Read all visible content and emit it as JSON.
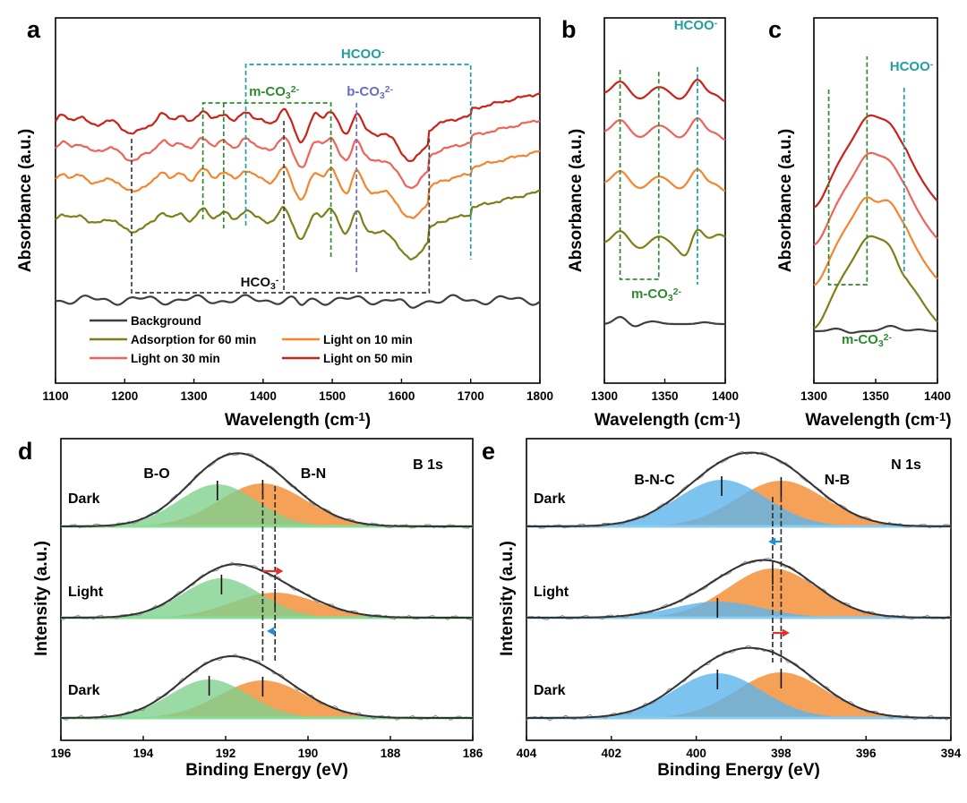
{
  "colors": {
    "background": "#3f3f3f",
    "adsorption_60": "#7f7f16",
    "light_10": "#f4842e",
    "light_30": "#ef6358",
    "light_50": "#cc2216",
    "hcoo": "#1f9f9e",
    "m_co3": "#2e8a2e",
    "b_co3": "#6b6bc9",
    "hco3": "#404040",
    "bo_fill": "#7fd18e",
    "bn_fill": "#f4913b",
    "bnc_fill": "#5cb4ec",
    "nb_fill": "#f4913b",
    "baseline_green": "#88dd99",
    "baseline_blue": "#88ccee",
    "arrow_red": "#e0322b",
    "arrow_blue": "#1e8ed6"
  },
  "chart_data": [
    {
      "panel": "a",
      "type": "line",
      "xlabel": "Wavelength (cm",
      "xlabel_sup": "-1",
      "xlabel_close": ")",
      "ylabel": "Absorbance (a.u.)",
      "xlim": [
        1100,
        1800
      ],
      "x_ticks": [
        "1100",
        "1200",
        "1300",
        "1400",
        "1500",
        "1600",
        "1700",
        "1800"
      ],
      "y_ticks": "none",
      "series": [
        {
          "name": "Background",
          "offset": 0
        },
        {
          "name": "Adsorption for 60 min",
          "offset": 1
        },
        {
          "name": "Light on 10 min",
          "offset": 2
        },
        {
          "name": "Light on 30 min",
          "offset": 3
        },
        {
          "name": "Light on 50 min",
          "offset": 4
        }
      ],
      "legend_rows": [
        [
          "Background"
        ],
        [
          "Adsorption for 60 min",
          "Light on 10 min"
        ],
        [
          "Light on 30 min",
          "Light on 50 min"
        ]
      ],
      "annotations": {
        "hcoo": {
          "label": "HCOO",
          "sup": "-",
          "positions": [
            1375,
            1700
          ]
        },
        "m_co3": {
          "label": "m-CO",
          "sub": "3",
          "sup": "2-",
          "positions": [
            1313,
            1343,
            1498
          ]
        },
        "b_co3": {
          "label": "b-CO",
          "sub": "3",
          "sup": "2-",
          "positions": [
            1535
          ]
        },
        "hco3": {
          "label": "HCO",
          "sub": "3",
          "sup": "-",
          "positions": [
            1210,
            1430,
            1640
          ]
        }
      }
    },
    {
      "panel": "b",
      "type": "line",
      "xlabel": "Wavelength (cm",
      "xlabel_sup": "-1",
      "xlabel_close": ")",
      "ylabel": "Absorbance (a.u.)",
      "xlim": [
        1300,
        1400
      ],
      "x_ticks": [
        "1300",
        "1350",
        "1400"
      ],
      "annotations": {
        "hcoo": {
          "label": "HCOO",
          "sup": "-",
          "positions": [
            1377
          ]
        },
        "m_co3": {
          "label": "m-CO",
          "sub": "3",
          "sup": "2-",
          "positions": [
            1313,
            1345
          ]
        }
      }
    },
    {
      "panel": "c",
      "type": "line",
      "xlabel": "Wavelength (cm",
      "xlabel_sup": "-1",
      "xlabel_close": ")",
      "ylabel": "Absorbance (a.u.)",
      "xlim": [
        1300,
        1400
      ],
      "x_ticks": [
        "1300",
        "1350",
        "1400"
      ],
      "annotations": {
        "hcoo": {
          "label": "HCOO",
          "sup": "-",
          "positions": [
            1373
          ]
        },
        "m_co3": {
          "label": "m-CO",
          "sub": "3",
          "sup": "2-",
          "positions": [
            1312,
            1343
          ]
        }
      }
    },
    {
      "panel": "d",
      "type": "line",
      "title": "B 1s",
      "xlabel": "Binding Energy (eV)",
      "ylabel": "Intensity (a.u.)",
      "xlim": [
        196,
        186
      ],
      "x_ticks": [
        "196",
        "194",
        "192",
        "190",
        "188",
        "186"
      ],
      "peaks": {
        "bo_label": "B-O",
        "bn_label": "B-N"
      },
      "spectra": [
        {
          "condition": "Dark",
          "bo_center": 192.2,
          "bn_center": 191.1
        },
        {
          "condition": "Light",
          "bo_center": 192.1,
          "bn_center": 190.8
        },
        {
          "condition": "Dark",
          "bo_center": 192.4,
          "bn_center": 191.1
        }
      ],
      "dashed_lines": [
        191.1,
        190.8
      ]
    },
    {
      "panel": "e",
      "type": "line",
      "title": "N 1s",
      "xlabel": "Binding Energy (eV)",
      "ylabel": "Intensity (a.u.)",
      "xlim": [
        404,
        394
      ],
      "x_ticks": [
        "404",
        "402",
        "400",
        "398",
        "396",
        "394"
      ],
      "peaks": {
        "bnc_label": "B-N-C",
        "nb_label": "N-B"
      },
      "spectra": [
        {
          "condition": "Dark",
          "bnc_center": 399.4,
          "nb_center": 398.0
        },
        {
          "condition": "Light",
          "bnc_center": 399.5,
          "nb_center": 398.2
        },
        {
          "condition": "Dark",
          "bnc_center": 399.5,
          "nb_center": 398.0
        }
      ],
      "dashed_lines": [
        398.2,
        398.0
      ]
    }
  ]
}
